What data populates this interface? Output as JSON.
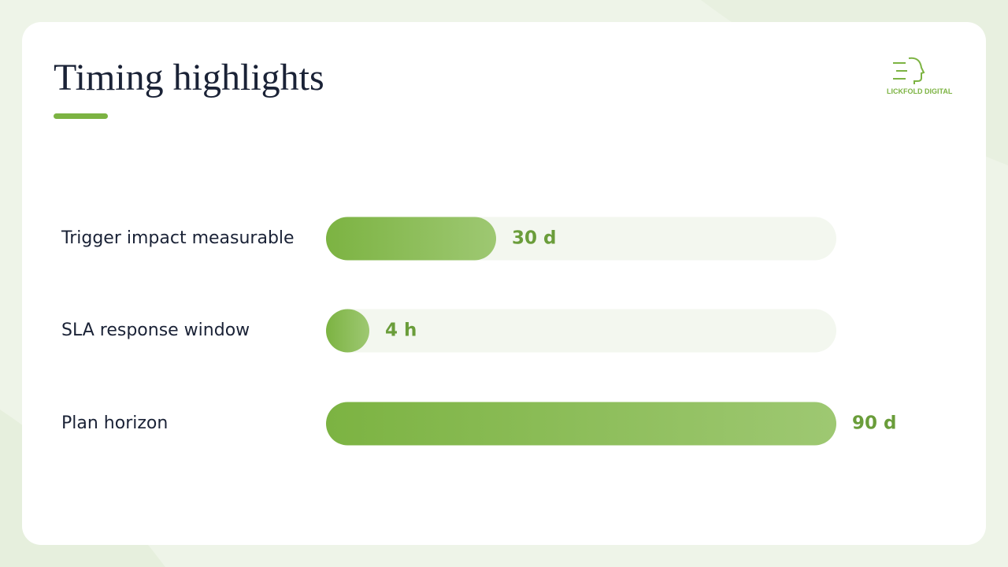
{
  "header": {
    "title": "Timing highlights",
    "logo_text": "LICKFOLD DIGITAL"
  },
  "chart_data": {
    "type": "bar",
    "orientation": "horizontal",
    "categories": [
      "Trigger impact measurable",
      "SLA response window",
      "Plan horizon"
    ],
    "values": [
      30,
      0.1667,
      90
    ],
    "value_labels": [
      "30 d",
      "4 h",
      "90 d"
    ],
    "xlim": [
      0,
      90
    ],
    "color": "#7cb342"
  }
}
